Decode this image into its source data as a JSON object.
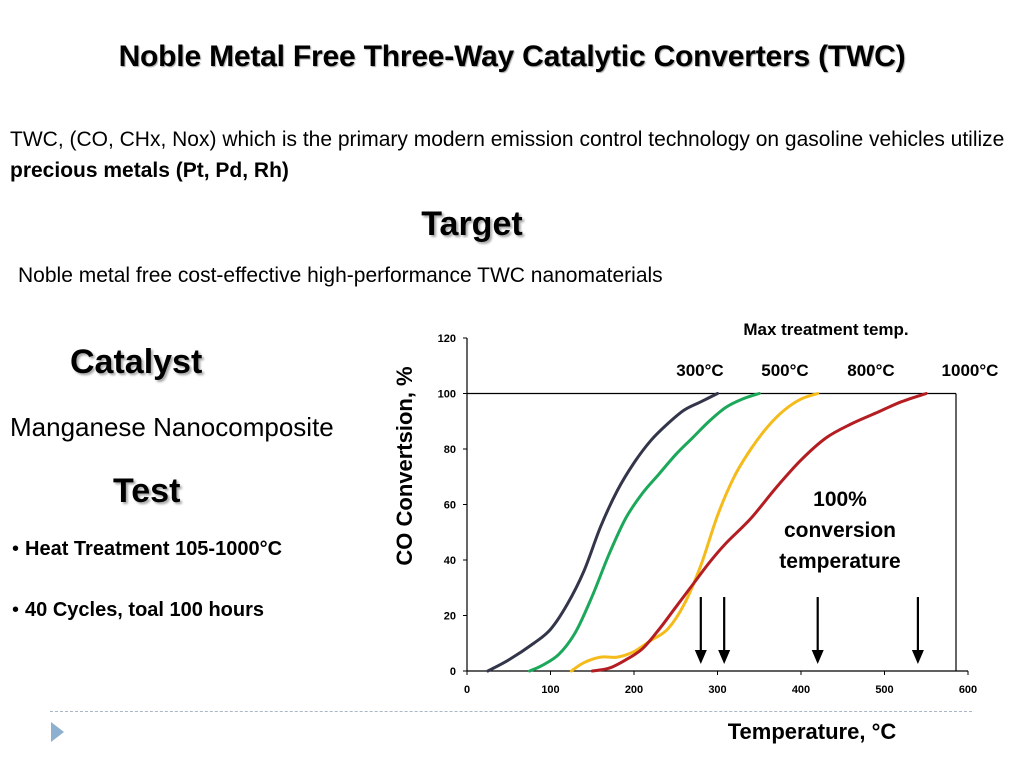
{
  "slide": {
    "title": "Noble Metal Free Three-Way Catalytic Converters (TWC)",
    "intro_text": "TWC, (CO, CHx, Nox) which is the primary modern emission control technology on gasoline vehicles utilize ",
    "intro_bold": "precious metals (Pt, Pd, Rh)",
    "target_heading": "Target",
    "target_text": "Noble metal free cost-effective high-performance TWC nanomaterials",
    "catalyst_heading": "Catalyst",
    "catalyst_text": "Manganese Nanocomposite",
    "test_heading": "Test",
    "bullets": [
      "Heat Treatment 105-1000°C",
      "40 Cycles, toal 100 hours"
    ]
  },
  "chart_data": {
    "type": "line",
    "xlabel": "Temperature, °C",
    "ylabel": "CO Convertsion, %",
    "xlim": [
      0,
      600
    ],
    "ylim": [
      0,
      120
    ],
    "x_ticks": [
      0,
      100,
      200,
      300,
      400,
      500,
      600
    ],
    "y_ticks": [
      0,
      20,
      40,
      60,
      80,
      100,
      120
    ],
    "legend_title": "Max treatment temp.",
    "annotation": [
      "100%",
      "conversion",
      "temperature"
    ],
    "arrows_x": [
      280,
      308,
      420,
      540
    ],
    "series": [
      {
        "name": "300°C",
        "color": "#33364a",
        "x": [
          25,
          50,
          80,
          100,
          120,
          140,
          160,
          180,
          200,
          220,
          240,
          260,
          280,
          300
        ],
        "y": [
          0,
          4,
          10,
          15,
          24,
          36,
          52,
          65,
          75,
          83,
          89,
          94,
          97,
          100
        ]
      },
      {
        "name": "500°C",
        "color": "#1ca85a",
        "x": [
          75,
          90,
          110,
          130,
          150,
          170,
          190,
          210,
          230,
          250,
          270,
          290,
          310,
          330,
          350
        ],
        "y": [
          0,
          2,
          6,
          14,
          27,
          42,
          55,
          64,
          71,
          78,
          84,
          90,
          95,
          98,
          100
        ]
      },
      {
        "name": "800°C",
        "color": "#f5bb1a",
        "x": [
          125,
          140,
          160,
          180,
          200,
          220,
          240,
          260,
          280,
          300,
          320,
          340,
          360,
          380,
          400,
          420
        ],
        "y": [
          0,
          3,
          5,
          5,
          7,
          11,
          15,
          24,
          38,
          56,
          70,
          80,
          88,
          94,
          98,
          100
        ]
      },
      {
        "name": "1000°C",
        "color": "#b41e22",
        "x": [
          150,
          170,
          190,
          210,
          230,
          250,
          270,
          290,
          310,
          340,
          370,
          400,
          430,
          460,
          490,
          520,
          550
        ],
        "y": [
          0,
          1,
          4,
          8,
          15,
          23,
          31,
          39,
          46,
          55,
          66,
          76,
          84,
          89,
          93,
          97,
          100
        ]
      }
    ]
  }
}
